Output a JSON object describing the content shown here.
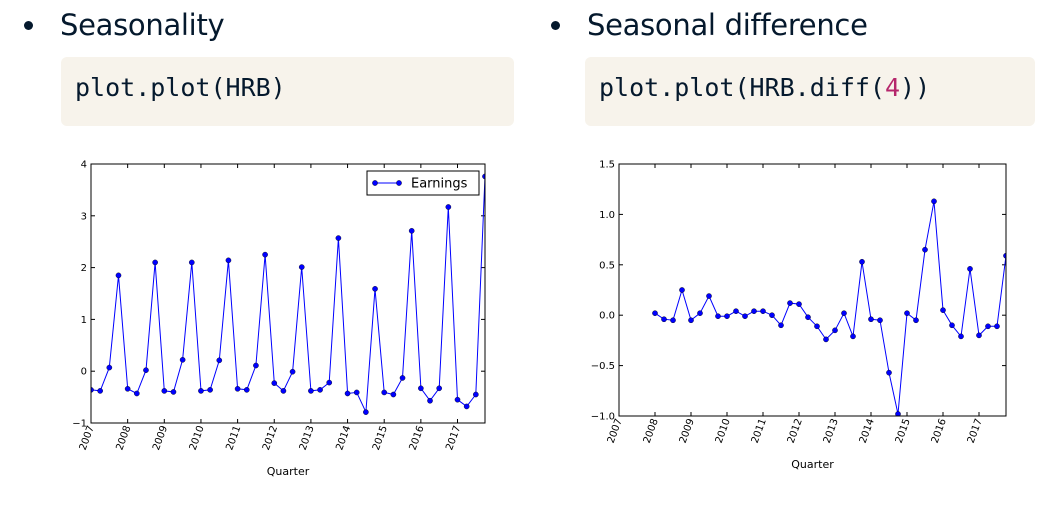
{
  "left": {
    "bullet": "Seasonality",
    "code": "plot.plot(HRB)"
  },
  "right": {
    "bullet": "Seasonal difference",
    "code_prefix": "plot.plot(HRB.diff(",
    "code_number": "4",
    "code_suffix": "))"
  },
  "colors": {
    "line": "#0000ff",
    "text": "#05192d",
    "code_bg": "#f7f3eb",
    "code_number": "#b5266b"
  },
  "chart_data": [
    {
      "type": "line",
      "title": "",
      "xlabel": "Quarter",
      "ylabel": "",
      "xlim": [
        2007.0,
        2017.75
      ],
      "ylim": [
        -1,
        4
      ],
      "yticks": [
        -1,
        0,
        1,
        2,
        3,
        4
      ],
      "ytick_labels": [
        "−1",
        "0",
        "1",
        "2",
        "3",
        "4"
      ],
      "xticks": [
        "2007",
        "2008",
        "2009",
        "2010",
        "2011",
        "2012",
        "2013",
        "2014",
        "2015",
        "2016",
        "2017"
      ],
      "legend": "upper right",
      "series": [
        {
          "name": "Earnings",
          "marker": "circle",
          "x": [
            2007.0,
            2007.25,
            2007.5,
            2007.75,
            2008.0,
            2008.25,
            2008.5,
            2008.75,
            2009.0,
            2009.25,
            2009.5,
            2009.75,
            2010.0,
            2010.25,
            2010.5,
            2010.75,
            2011.0,
            2011.25,
            2011.5,
            2011.75,
            2012.0,
            2012.25,
            2012.5,
            2012.75,
            2013.0,
            2013.25,
            2013.5,
            2013.75,
            2014.0,
            2014.25,
            2014.5,
            2014.75,
            2015.0,
            2015.25,
            2015.5,
            2015.75,
            2016.0,
            2016.25,
            2016.5,
            2016.75,
            2017.0,
            2017.25,
            2017.5,
            2017.75
          ],
          "y": [
            -0.36,
            -0.38,
            0.07,
            1.85,
            -0.34,
            -0.43,
            0.02,
            2.1,
            -0.38,
            -0.4,
            0.22,
            2.1,
            -0.38,
            -0.36,
            0.21,
            2.14,
            -0.34,
            -0.36,
            0.11,
            2.25,
            -0.23,
            -0.38,
            -0.01,
            2.01,
            -0.38,
            -0.36,
            -0.22,
            2.57,
            -0.43,
            -0.41,
            -0.79,
            1.59,
            -0.41,
            -0.45,
            -0.13,
            2.71,
            -0.33,
            -0.57,
            -0.33,
            3.17,
            -0.55,
            -0.68,
            -0.45,
            3.76
          ]
        }
      ]
    },
    {
      "type": "line",
      "title": "",
      "xlabel": "Quarter",
      "ylabel": "",
      "xlim": [
        2007.0,
        2017.75
      ],
      "ylim": [
        -1.0,
        1.5
      ],
      "yticks": [
        -1.0,
        -0.5,
        0.0,
        0.5,
        1.0,
        1.5
      ],
      "ytick_labels": [
        "−1.0",
        "−0.5",
        "0.0",
        "0.5",
        "1.0",
        "1.5"
      ],
      "xticks": [
        "2007",
        "2008",
        "2009",
        "2010",
        "2011",
        "2012",
        "2013",
        "2014",
        "2015",
        "2016",
        "2017"
      ],
      "legend": "none",
      "series": [
        {
          "marker": "circle",
          "x": [
            2008.0,
            2008.25,
            2008.5,
            2008.75,
            2009.0,
            2009.25,
            2009.5,
            2009.75,
            2010.0,
            2010.25,
            2010.5,
            2010.75,
            2011.0,
            2011.25,
            2011.5,
            2011.75,
            2012.0,
            2012.25,
            2012.5,
            2012.75,
            2013.0,
            2013.25,
            2013.5,
            2013.75,
            2014.0,
            2014.25,
            2014.5,
            2014.75,
            2015.0,
            2015.25,
            2015.5,
            2015.75,
            2016.0,
            2016.25,
            2016.5,
            2016.75,
            2017.0,
            2017.25,
            2017.5,
            2017.75
          ],
          "y": [
            0.02,
            -0.04,
            -0.05,
            0.25,
            -0.05,
            0.02,
            0.19,
            -0.01,
            -0.01,
            0.04,
            -0.01,
            0.04,
            0.04,
            0.0,
            -0.1,
            0.12,
            0.11,
            -0.02,
            -0.11,
            -0.24,
            -0.15,
            0.02,
            -0.21,
            0.53,
            -0.04,
            -0.05,
            -0.57,
            -0.98,
            0.02,
            -0.05,
            0.65,
            1.13,
            0.05,
            -0.1,
            -0.21,
            0.46,
            -0.2,
            -0.11,
            -0.11,
            0.59
          ]
        }
      ]
    }
  ]
}
